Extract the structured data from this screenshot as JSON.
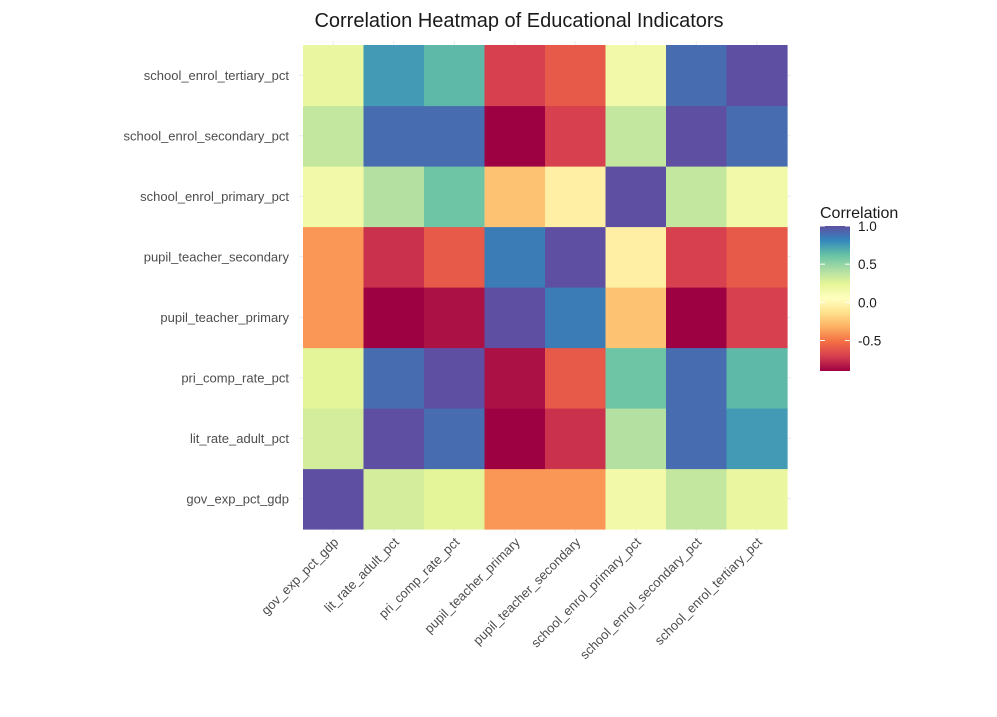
{
  "chart_data": {
    "type": "heatmap",
    "title": "Correlation Heatmap of Educational Indicators",
    "xlabel": "",
    "ylabel": "",
    "x_categories": [
      "gov_exp_pct_gdp",
      "lit_rate_adult_pct",
      "pri_comp_rate_pct",
      "pupil_teacher_primary",
      "pupil_teacher_secondary",
      "school_enrol_primary_pct",
      "school_enrol_secondary_pct",
      "school_enrol_tertiary_pct"
    ],
    "y_categories": [
      "gov_exp_pct_gdp",
      "lit_rate_adult_pct",
      "pri_comp_rate_pct",
      "pupil_teacher_primary",
      "pupil_teacher_secondary",
      "school_enrol_primary_pct",
      "school_enrol_secondary_pct",
      "school_enrol_tertiary_pct"
    ],
    "matrix": [
      [
        1.0,
        0.3,
        0.25,
        -0.4,
        -0.4,
        0.15,
        0.35,
        0.2
      ],
      [
        0.3,
        1.0,
        0.9,
        -0.9,
        -0.75,
        0.4,
        0.9,
        0.75
      ],
      [
        0.25,
        0.9,
        1.0,
        -0.85,
        -0.6,
        0.6,
        0.9,
        0.65
      ],
      [
        -0.4,
        -0.9,
        -0.85,
        1.0,
        0.85,
        -0.25,
        -0.9,
        -0.7
      ],
      [
        -0.4,
        -0.75,
        -0.6,
        0.85,
        1.0,
        -0.05,
        -0.7,
        -0.6
      ],
      [
        0.15,
        0.4,
        0.6,
        -0.25,
        -0.05,
        1.0,
        0.35,
        0.15
      ],
      [
        0.35,
        0.9,
        0.9,
        -0.9,
        -0.7,
        0.35,
        1.0,
        0.9
      ],
      [
        0.2,
        0.75,
        0.65,
        -0.7,
        -0.6,
        0.15,
        0.9,
        1.0
      ]
    ],
    "legend": {
      "title": "Correlation",
      "position": "right",
      "range": [
        -0.9,
        1.0
      ],
      "ticks": [
        1.0,
        0.5,
        0.0,
        -0.5
      ],
      "tick_labels": [
        "1.0",
        "0.5",
        "0.0",
        "-0.5"
      ]
    },
    "palette": "Spectral",
    "colors": [
      "#9E0142",
      "#D53E4F",
      "#F46D43",
      "#FDAE61",
      "#FEE08B",
      "#FFFFBF",
      "#E6F598",
      "#ABDDA4",
      "#66C2A5",
      "#3288BD",
      "#5E4FA2"
    ],
    "grid": true
  }
}
